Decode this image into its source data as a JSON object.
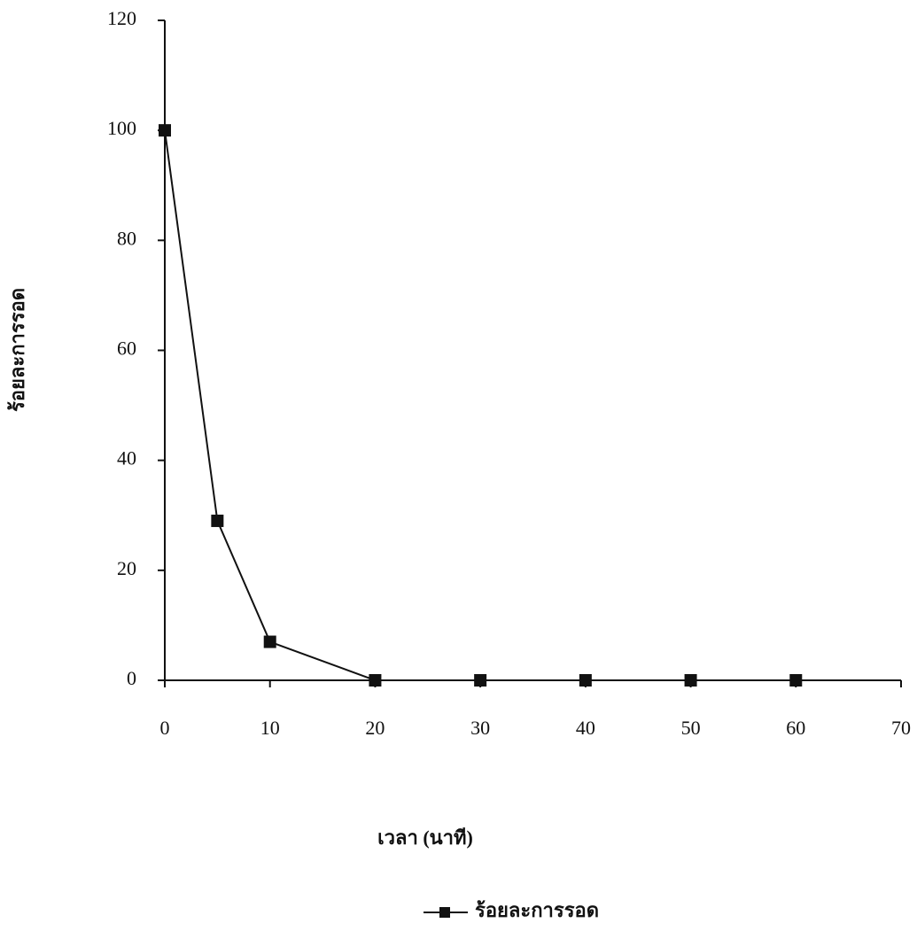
{
  "chart_data": {
    "type": "line",
    "x_label": "เวลา (นาที)",
    "y_label": "ร้อยละการรอด",
    "x": [
      0,
      5,
      10,
      20,
      30,
      40,
      50,
      60
    ],
    "series": [
      {
        "name": "ร้อยละการรอด",
        "color": "#111111",
        "values": [
          100,
          29,
          7,
          0,
          0,
          0,
          0,
          0
        ]
      }
    ],
    "xlim": [
      0,
      70
    ],
    "xticks": [
      0,
      10,
      20,
      30,
      40,
      50,
      60,
      70
    ],
    "ylim": [
      0,
      120
    ],
    "yticks": [
      0,
      20,
      40,
      60,
      80,
      100,
      120
    ],
    "grid": false,
    "legend": "bottom"
  }
}
